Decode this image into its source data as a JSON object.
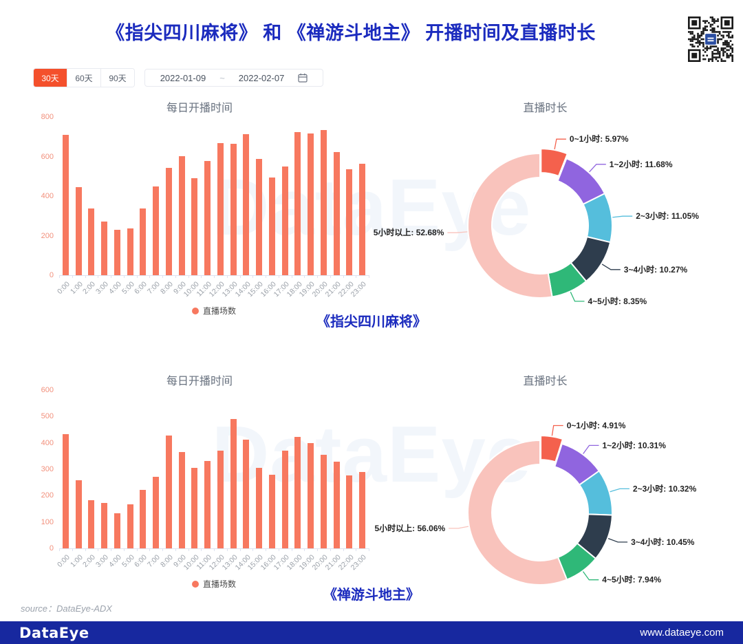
{
  "header": {
    "title": "《指尖四川麻将》 和 《禅游斗地主》 开播时间及直播时长"
  },
  "controls": {
    "ranges": [
      {
        "label": "30天",
        "active": true
      },
      {
        "label": "60天",
        "active": false
      },
      {
        "label": "90天",
        "active": false
      }
    ],
    "date_start": "2022-01-09",
    "date_separator": "~",
    "date_end": "2022-02-07",
    "calendar_icon": "calendar-icon"
  },
  "watermark": "DataEye",
  "sections": [
    {
      "game_title": "《指尖四川麻将》"
    },
    {
      "game_title": "《禅游斗地主》"
    }
  ],
  "source": "source：DataEye-ADX",
  "footer": {
    "logo": "DataEye",
    "url": "www.dataeye.com"
  },
  "colors": {
    "title_blue": "#1B2BBE",
    "footer_blue": "#17289F",
    "bar": "#F7785F",
    "y_axis_label": "#F2907C",
    "x_axis_label": "#9AA0A8",
    "chart_title_gray": "#67707E",
    "range_active_bg": "#F4502C",
    "donut_palette": [
      "#F4614D",
      "#9065DF",
      "#55BEDC",
      "#2E3D4D",
      "#2FB878",
      "#F9C3BC"
    ]
  },
  "chart_data": [
    {
      "type": "bar",
      "game": "《指尖四川麻将》",
      "title": "每日开播时间",
      "series_name": "直播场数",
      "categories": [
        "0:00",
        "1:00",
        "2:00",
        "3:00",
        "4:00",
        "5:00",
        "6:00",
        "7:00",
        "8:00",
        "9:00",
        "10:00",
        "11:00",
        "12:00",
        "13:00",
        "14:00",
        "15:00",
        "16:00",
        "17:00",
        "18:00",
        "19:00",
        "20:00",
        "21:00",
        "22:00",
        "23:00"
      ],
      "values": [
        710,
        446,
        336,
        270,
        228,
        236,
        336,
        448,
        543,
        602,
        490,
        578,
        669,
        666,
        713,
        588,
        494,
        551,
        722,
        717,
        734,
        621,
        534,
        564
      ],
      "xlabel": "",
      "ylabel": "",
      "ylim": [
        0,
        800
      ],
      "yticks": [
        0,
        200,
        400,
        600,
        800
      ],
      "grid": false,
      "legend_position": "bottom"
    },
    {
      "type": "donut",
      "game": "《指尖四川麻将》",
      "title": "直播时长",
      "labels": [
        "0~1小时",
        "1~2小时",
        "2~3小时",
        "3~4小时",
        "4~5小时",
        "5小时以上"
      ],
      "values": [
        5.97,
        11.68,
        11.05,
        10.27,
        8.35,
        52.68
      ],
      "unit": "%",
      "selected_index": 0,
      "legend_position": "none"
    },
    {
      "type": "bar",
      "game": "《禅游斗地主》",
      "title": "每日开播时间",
      "series_name": "直播场数",
      "categories": [
        "0:00",
        "1:00",
        "2:00",
        "3:00",
        "4:00",
        "5:00",
        "6:00",
        "7:00",
        "8:00",
        "9:00",
        "10:00",
        "11:00",
        "12:00",
        "13:00",
        "14:00",
        "15:00",
        "16:00",
        "17:00",
        "18:00",
        "19:00",
        "20:00",
        "21:00",
        "22:00",
        "23:00"
      ],
      "values": [
        433,
        258,
        182,
        173,
        133,
        168,
        221,
        272,
        428,
        365,
        306,
        332,
        371,
        491,
        411,
        304,
        278,
        371,
        423,
        400,
        356,
        328,
        276,
        289
      ],
      "xlabel": "",
      "ylabel": "",
      "ylim": [
        0,
        600
      ],
      "yticks": [
        0,
        100,
        200,
        300,
        400,
        500,
        600
      ],
      "grid": false,
      "legend_position": "bottom"
    },
    {
      "type": "donut",
      "game": "《禅游斗地主》",
      "title": "直播时长",
      "labels": [
        "0~1小时",
        "1~2小时",
        "2~3小时",
        "3~4小时",
        "4~5小时",
        "5小时以上"
      ],
      "values": [
        4.91,
        10.31,
        10.32,
        10.45,
        7.94,
        56.06
      ],
      "unit": "%",
      "selected_index": 0,
      "legend_position": "none"
    }
  ]
}
